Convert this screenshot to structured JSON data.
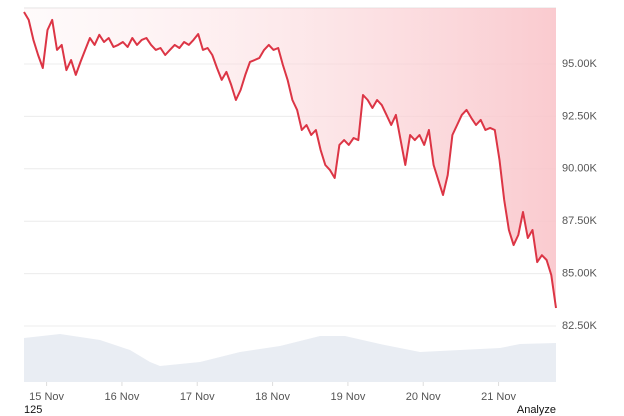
{
  "chart_data": {
    "type": "line",
    "x": [
      14.7,
      14.7625,
      14.825,
      14.8875,
      14.95,
      15.0125,
      15.075,
      15.1375,
      15.2,
      15.2625,
      15.325,
      15.3875,
      15.45,
      15.5125,
      15.575,
      15.6375,
      15.7,
      15.7625,
      15.825,
      15.8875,
      15.95,
      16.0125,
      16.075,
      16.1375,
      16.2,
      16.2625,
      16.325,
      16.3875,
      16.45,
      16.5125,
      16.575,
      16.6375,
      16.7,
      16.7625,
      16.825,
      16.8875,
      16.95,
      17.0125,
      17.075,
      17.1375,
      17.2,
      17.2625,
      17.325,
      17.3875,
      17.45,
      17.5125,
      17.575,
      17.6375,
      17.7,
      17.7625,
      17.825,
      17.8875,
      17.95,
      18.0125,
      18.075,
      18.1375,
      18.2,
      18.2625,
      18.325,
      18.3875,
      18.45,
      18.5125,
      18.575,
      18.6375,
      18.7,
      18.7625,
      18.825,
      18.8875,
      18.95,
      19.0125,
      19.075,
      19.1375,
      19.2,
      19.2625,
      19.325,
      19.3875,
      19.45,
      19.5125,
      19.575,
      19.6375,
      19.7,
      19.7625,
      19.825,
      19.8875,
      19.95,
      20.0125,
      20.075,
      20.1375,
      20.2,
      20.2625,
      20.325,
      20.3875,
      20.45,
      20.5125,
      20.575,
      20.6375,
      20.7,
      20.7625,
      20.825,
      20.8875,
      20.95,
      21.0125,
      21.075,
      21.1375,
      21.2,
      21.2625,
      21.325,
      21.3875,
      21.45,
      21.5125,
      21.575,
      21.6375,
      21.7,
      21.7625
    ],
    "values": [
      97480,
      97100,
      96150,
      95430,
      94810,
      96620,
      97100,
      95670,
      95910,
      94710,
      95190,
      94480,
      95100,
      95670,
      96240,
      95910,
      96390,
      96050,
      96240,
      95810,
      95910,
      96050,
      95810,
      96240,
      95910,
      96150,
      96240,
      95910,
      95670,
      95760,
      95430,
      95670,
      95910,
      95760,
      96050,
      95910,
      96150,
      96430,
      95670,
      95760,
      95430,
      94810,
      94240,
      94620,
      94000,
      93280,
      93760,
      94480,
      95100,
      95190,
      95290,
      95670,
      95910,
      95670,
      95760,
      94950,
      94240,
      93280,
      92810,
      91850,
      92090,
      91610,
      91850,
      90900,
      90180,
      89940,
      89560,
      91140,
      91370,
      91140,
      91470,
      91370,
      93520,
      93280,
      92900,
      93280,
      93040,
      92570,
      92090,
      92570,
      91370,
      90180,
      91610,
      91370,
      91610,
      91140,
      91850,
      90180,
      89460,
      88750,
      89700,
      91610,
      92090,
      92570,
      92810,
      92430,
      92090,
      92330,
      91850,
      91950,
      91850,
      90420,
      88510,
      87080,
      86360,
      86840,
      87940,
      86700,
      87080,
      85550,
      85880,
      85650,
      84930,
      83360
    ],
    "color": "#dc3545",
    "xlim": [
      14.7,
      21.7625
    ],
    "xticks": [
      {
        "value": 15,
        "label": "15 Nov"
      },
      {
        "value": 16,
        "label": "16 Nov"
      },
      {
        "value": 17,
        "label": "17 Nov"
      },
      {
        "value": 18,
        "label": "18 Nov"
      },
      {
        "value": 19,
        "label": "19 Nov"
      },
      {
        "value": 20,
        "label": "20 Nov"
      },
      {
        "value": 21,
        "label": "21 Nov"
      }
    ],
    "ylim": [
      79830,
      97670
    ],
    "yticks": [
      {
        "value": 82500,
        "label": "82.50K"
      },
      {
        "value": 85000,
        "label": "85.00K"
      },
      {
        "value": 87500,
        "label": "87.50K"
      },
      {
        "value": 90000,
        "label": "90.00K"
      },
      {
        "value": 92500,
        "label": "92.50K"
      },
      {
        "value": 95000,
        "label": "95.00K"
      }
    ],
    "grid": true
  },
  "footer": {
    "left": "125",
    "right": "Analyze"
  }
}
